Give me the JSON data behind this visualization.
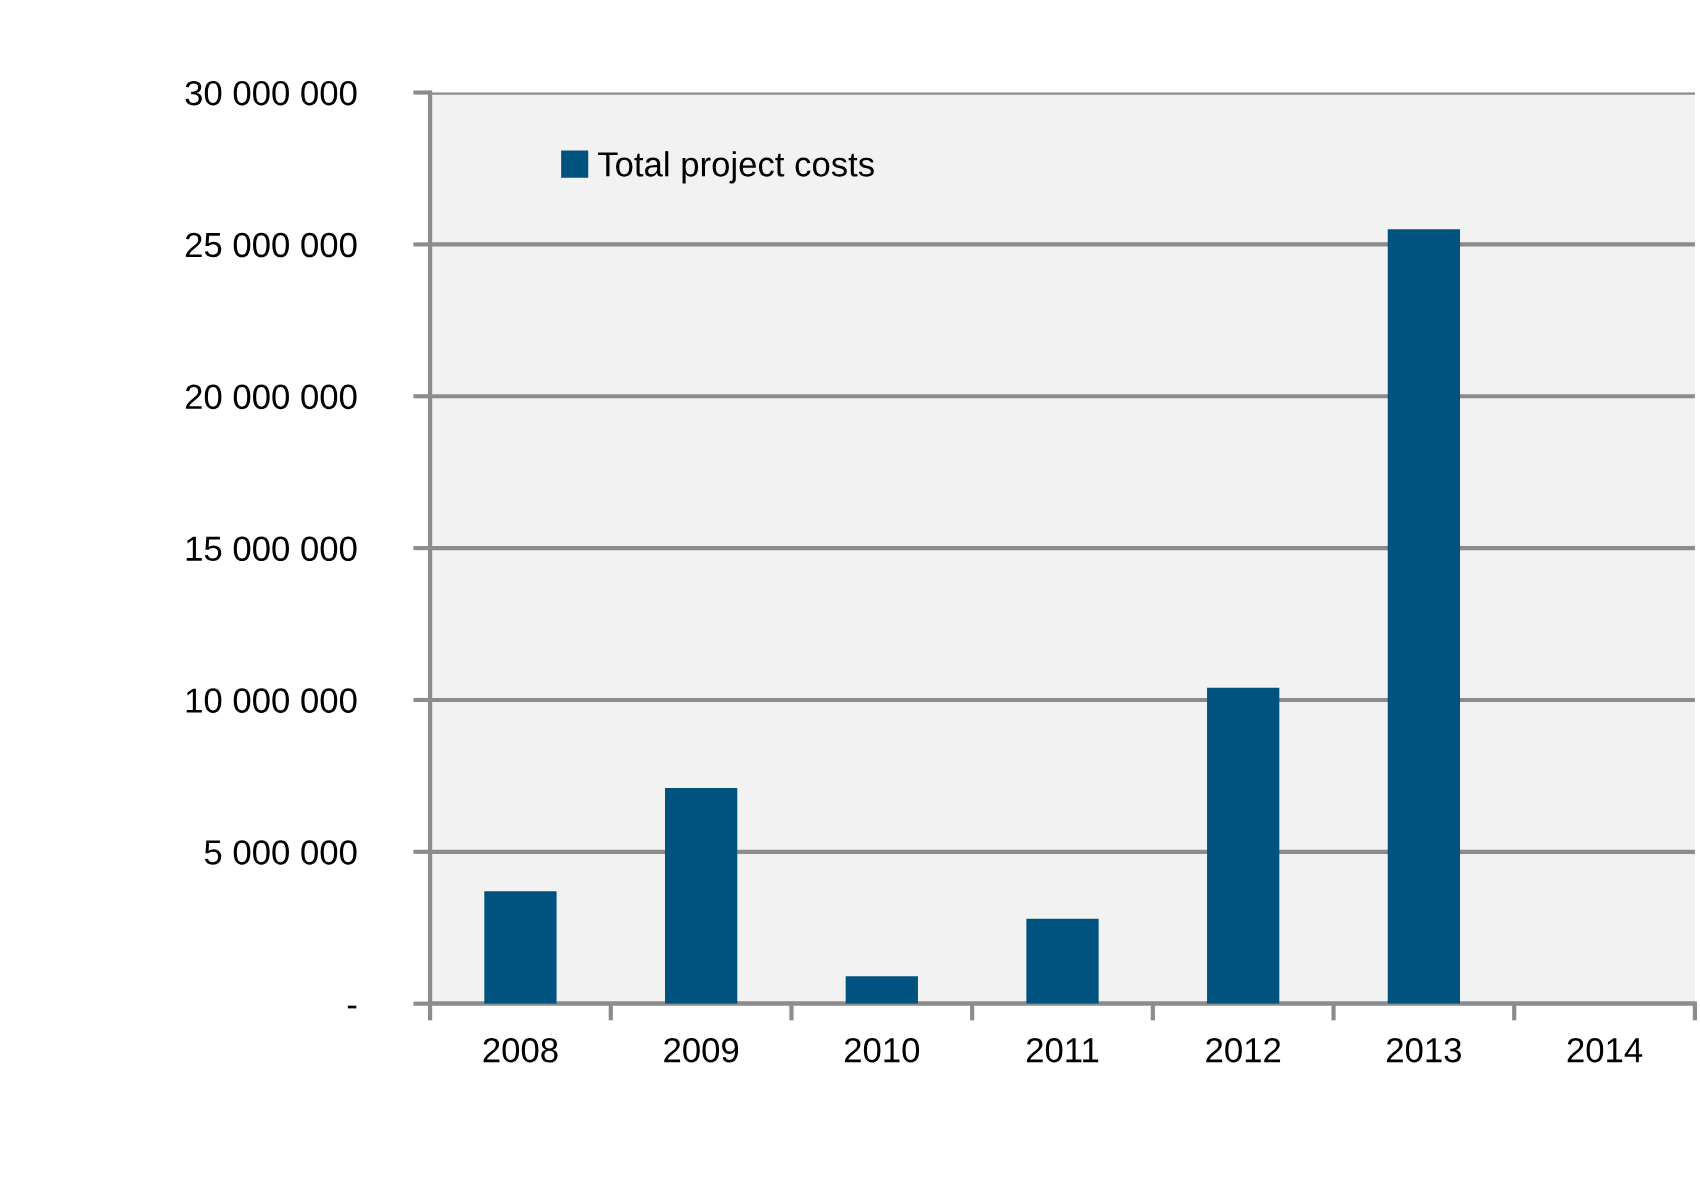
{
  "chart_data": {
    "type": "bar",
    "categories": [
      "2008",
      "2009",
      "2010",
      "2011",
      "2012",
      "2013",
      "2014"
    ],
    "series": [
      {
        "name": "Total project costs",
        "color": "#00537f",
        "values": [
          3700000,
          7100000,
          900000,
          2800000,
          10400000,
          25500000,
          null
        ]
      }
    ],
    "ylim": [
      0,
      30000000
    ],
    "yticks": [
      {
        "value": 0,
        "label": "-"
      },
      {
        "value": 5000000,
        "label": "5 000 000"
      },
      {
        "value": 10000000,
        "label": "10 000 000"
      },
      {
        "value": 15000000,
        "label": "15 000 000"
      },
      {
        "value": 20000000,
        "label": "20 000 000"
      },
      {
        "value": 25000000,
        "label": "25 000 000"
      },
      {
        "value": 30000000,
        "label": "30 000 000"
      }
    ],
    "grid": "y",
    "legend": "top left"
  }
}
